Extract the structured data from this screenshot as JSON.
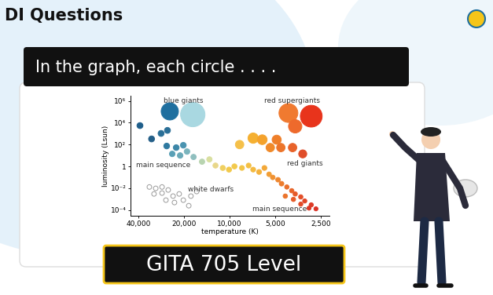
{
  "header": {
    "title": "DI Questions",
    "question": "In the graph, each circle . . . .",
    "level": "GITA 705 Level"
  },
  "chart_data": {
    "type": "scatter",
    "x_label": "temperature (K)",
    "y_label": "luminosity (Lsun)",
    "log": true,
    "xlim": [
      45000,
      2200
    ],
    "ylim": [
      3e-05,
      3000000
    ],
    "xticks": [
      {
        "value": 40000,
        "label": "40,000"
      },
      {
        "value": 20000,
        "label": "20,000"
      },
      {
        "value": 10000,
        "label": "10,000"
      },
      {
        "value": 5000,
        "label": "5,000"
      },
      {
        "value": 2500,
        "label": "2,500"
      }
    ],
    "yticks": [
      {
        "value": 0.0001,
        "label": "10⁻⁴"
      },
      {
        "value": 0.01,
        "label": "10⁻²"
      },
      1,
      {
        "value": 100,
        "label": "10²"
      },
      {
        "value": 10000,
        "label": "10⁴"
      },
      {
        "value": 1000000,
        "label": "10⁶"
      }
    ],
    "annotations": [
      "blue giants",
      "red supergiants",
      "main sequence",
      "white dwarfs",
      "red giants",
      "main sequence"
    ],
    "x": [
      39000,
      24800,
      17500,
      28300,
      25700,
      32700,
      26000,
      22500,
      20200,
      23900,
      21200,
      19100,
      17300,
      15200,
      13600,
      12400,
      11100,
      10100,
      9300,
      8300,
      7500,
      7000,
      6400,
      5900,
      5500,
      5200,
      4800,
      4550,
      4200,
      3900,
      3700,
      3400,
      3200,
      2900,
      2700,
      3000,
      3400,
      3800,
      4300,
      8600,
      7000,
      6100,
      5400,
      4900,
      4600,
      3850,
      3300,
      4100,
      3700,
      2900,
      33800,
      30700,
      27900,
      31500,
      27900,
      25400,
      23600,
      21500,
      26300,
      23100,
      20200,
      18000,
      16500,
      18600
    ],
    "values": [
      5500,
      110000,
      56000,
      1050,
      2000,
      330,
      74,
      53,
      87,
      14,
      10,
      23,
      7.3,
      2.7,
      4.4,
      1.2,
      0.72,
      0.51,
      1,
      0.72,
      1.2,
      0.51,
      0.31,
      0.72,
      0.19,
      0.098,
      0.06,
      0.026,
      0.013,
      0.0059,
      0.003,
      0.0016,
      0.00068,
      0.0003,
      0.00013,
      0.00015,
      0.00035,
      0.00095,
      0.0019,
      100,
      390,
      280,
      53,
      280,
      53,
      53,
      14,
      78000,
      4700,
      40000,
      0.013,
      0.0097,
      0.013,
      0.003,
      0.0036,
      0.0069,
      0.0019,
      0.003,
      0.00081,
      0.00049,
      0.00081,
      0.0019,
      0.005,
      0.00025
    ],
    "sizes": [
      30,
      250,
      500,
      30,
      30,
      30,
      28,
      28,
      28,
      26,
      26,
      26,
      24,
      24,
      24,
      22,
      22,
      22,
      22,
      20,
      20,
      20,
      20,
      20,
      18,
      18,
      18,
      18,
      16,
      16,
      16,
      16,
      15,
      15,
      14,
      14,
      15,
      16,
      16,
      60,
      90,
      80,
      60,
      70,
      60,
      60,
      55,
      300,
      150,
      400,
      18,
      18,
      18,
      18,
      18,
      18,
      18,
      18,
      18,
      18,
      18,
      18,
      18,
      18
    ],
    "colors": [
      "#1f5f8b",
      "#1f6f9f",
      "#a9d8e1",
      "#2a6f97",
      "#2a6f97",
      "#245f88",
      "#2f7aa0",
      "#3d87a8",
      "#4a93b0",
      "#5aa0b6",
      "#6aa9b8",
      "#7ab4bd",
      "#8fbfbf",
      "#b8d4b0",
      "#d9dfa0",
      "#e8d78a",
      "#f0d060",
      "#f2c94c",
      "#f2c94c",
      "#f3c548",
      "#f4c044",
      "#f4ba40",
      "#f4b23c",
      "#f3a838",
      "#f29e35",
      "#f09232",
      "#ee872f",
      "#ec7c2d",
      "#ea702b",
      "#e8652a",
      "#e65a29",
      "#e34f28",
      "#e04527",
      "#dd3b26",
      "#da3225",
      "#dc3826",
      "#e14a28",
      "#e65c29",
      "#eb742c",
      "#f5c04a",
      "#f5b031",
      "#f4a22c",
      "#f08a2a",
      "#ef7f2a",
      "#ec752b",
      "#e8632a",
      "#e04e2a",
      "#f07a30",
      "#ee6a2c",
      "#e8341c",
      "#ffffff",
      "#ffffff",
      "#ffffff",
      "#ffffff",
      "#ffffff",
      "#ffffff",
      "#ffffff",
      "#ffffff",
      "#ffffff",
      "#ffffff",
      "#ffffff",
      "#ffffff",
      "#ffffff",
      "#ffffff"
    ]
  }
}
